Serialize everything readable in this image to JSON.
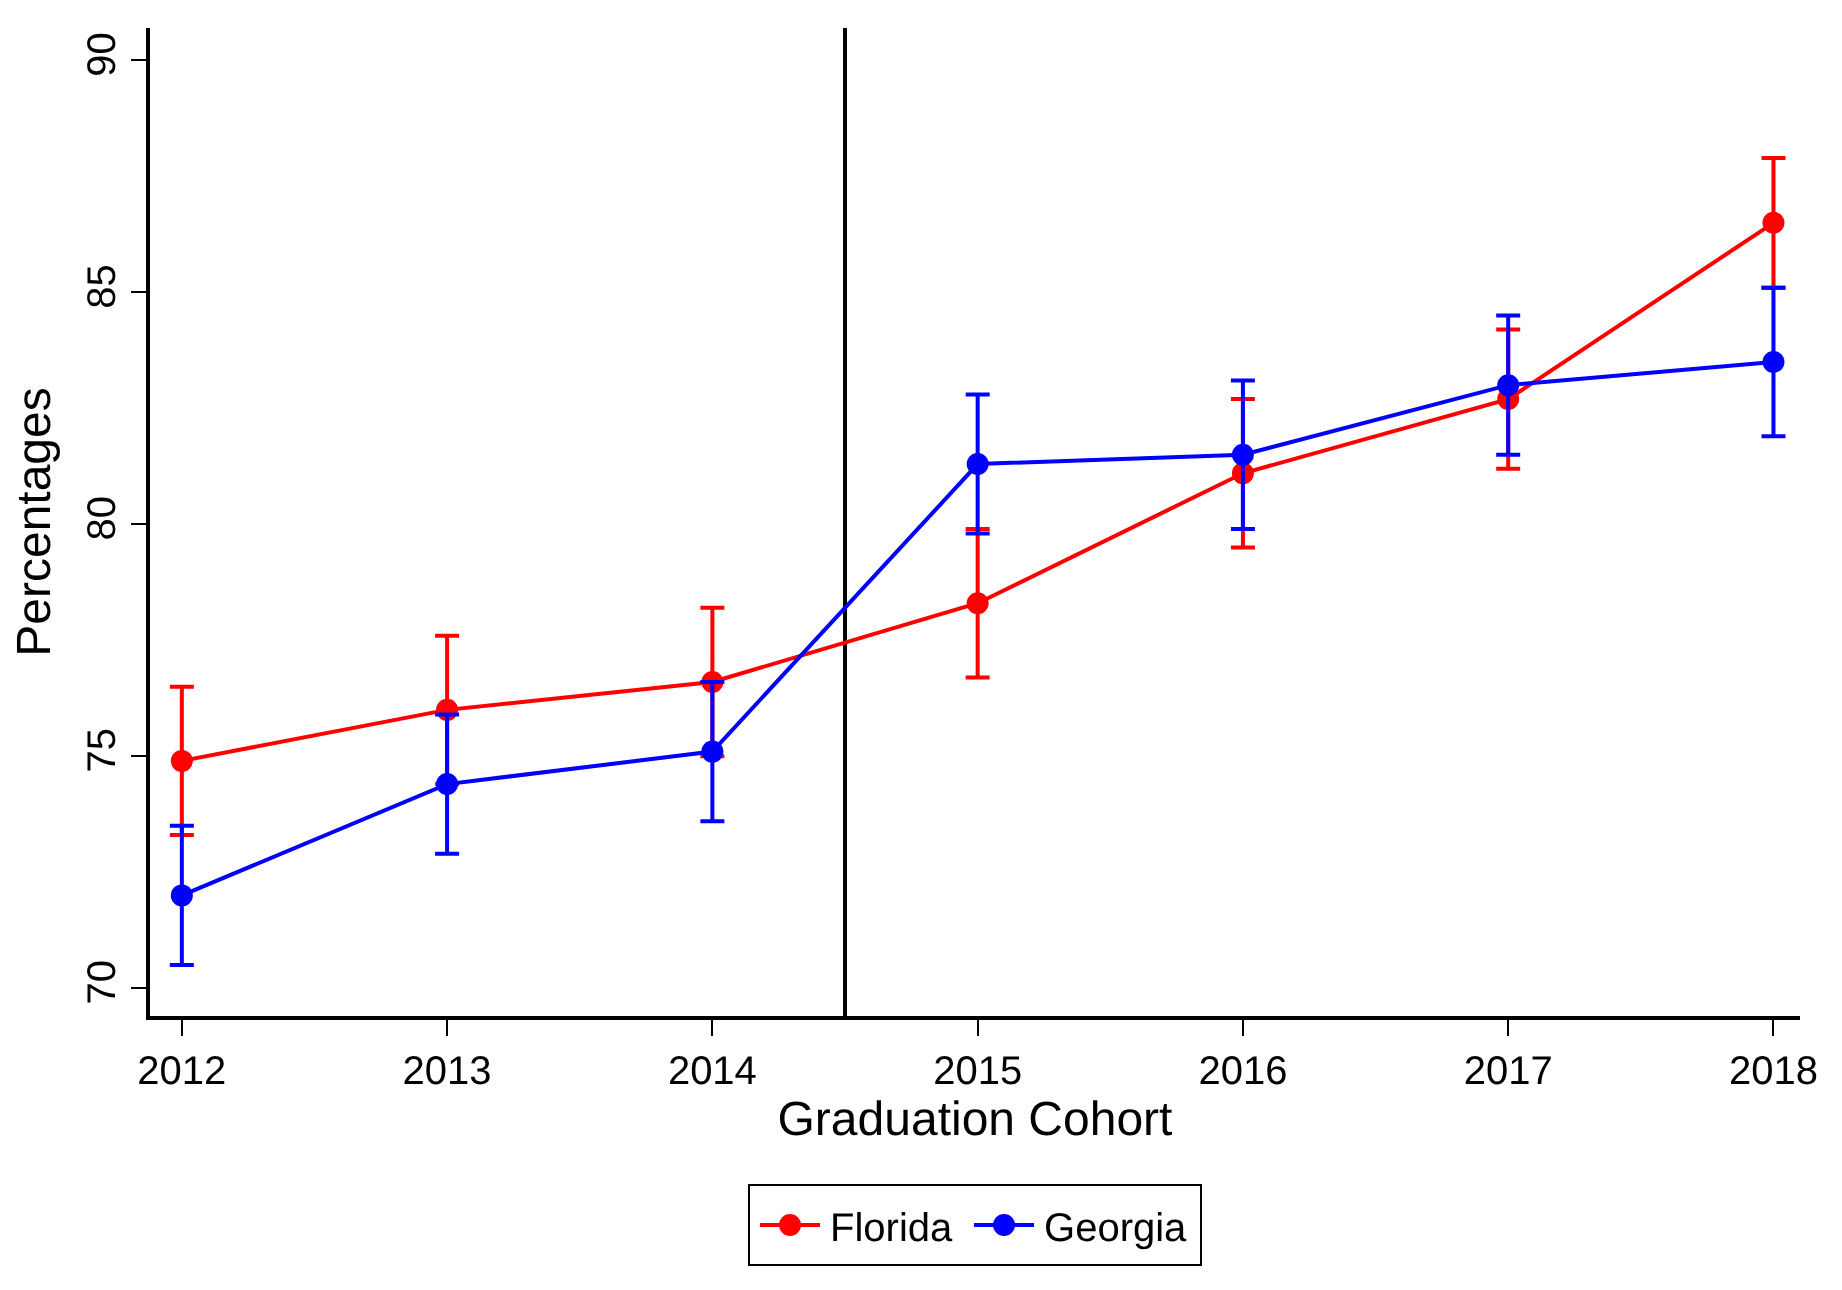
{
  "chart_data": {
    "type": "line",
    "xlabel": "Graduation Cohort",
    "ylabel": "Percentages",
    "x": [
      2012,
      2013,
      2014,
      2015,
      2016,
      2017,
      2018
    ],
    "xlim": [
      2011.88,
      2018.1
    ],
    "xticks": [
      2012,
      2013,
      2014,
      2015,
      2016,
      2017,
      2018
    ],
    "ylim": [
      69.4,
      90.7
    ],
    "yticks": [
      70,
      75,
      80,
      85,
      90
    ],
    "series": [
      {
        "name": "Florida",
        "color": "#ff0000",
        "values": [
          74.9,
          76.0,
          76.6,
          78.3,
          81.1,
          82.7,
          86.5
        ],
        "errors": [
          1.6,
          1.6,
          1.6,
          1.6,
          1.6,
          1.5,
          1.4
        ]
      },
      {
        "name": "Georgia",
        "color": "#0000ff",
        "values": [
          72.0,
          74.4,
          75.1,
          81.3,
          81.5,
          83.0,
          83.5
        ],
        "errors": [
          1.5,
          1.5,
          1.5,
          1.5,
          1.6,
          1.5,
          1.6
        ]
      }
    ],
    "ref_lines": [
      {
        "axis": "x",
        "value": 2014.5,
        "color": "#000000"
      }
    ],
    "grid": false,
    "legend": "bottom",
    "marker": "circle",
    "line_style": "solid"
  }
}
